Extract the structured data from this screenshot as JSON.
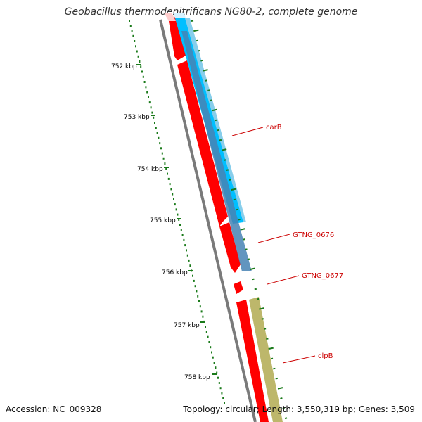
{
  "title": "Geobacillus thermodenitrificans NG80-2, complete genome",
  "accession_text": "Accession: NC_009328",
  "summary_text": "Topology: circular; Length: 3,550,319 bp; Genes: 3,509",
  "ruler": {
    "unit": "kbp",
    "labels": [
      "752 kbp",
      "753 kbp",
      "754 kbp",
      "755 kbp",
      "756 kbp",
      "757 kbp",
      "758 kbp"
    ],
    "color": "#1a7a1a"
  },
  "genes": [
    {
      "name": "carB",
      "color": "#cc0000"
    },
    {
      "name": "GTNG_0676",
      "color": "#cc0000"
    },
    {
      "name": "GTNG_0677",
      "color": "#cc0000"
    },
    {
      "name": "clpB",
      "color": "#cc0000"
    }
  ],
  "colors": {
    "backbone": "#7a7a7a",
    "forward_cds": "#ff0000",
    "reverse_cds_light": "#00bfff",
    "reverse_cds_dark": "#4682b4",
    "reverse_cds_olive": "#bdb76b",
    "label": "#cc0000"
  }
}
